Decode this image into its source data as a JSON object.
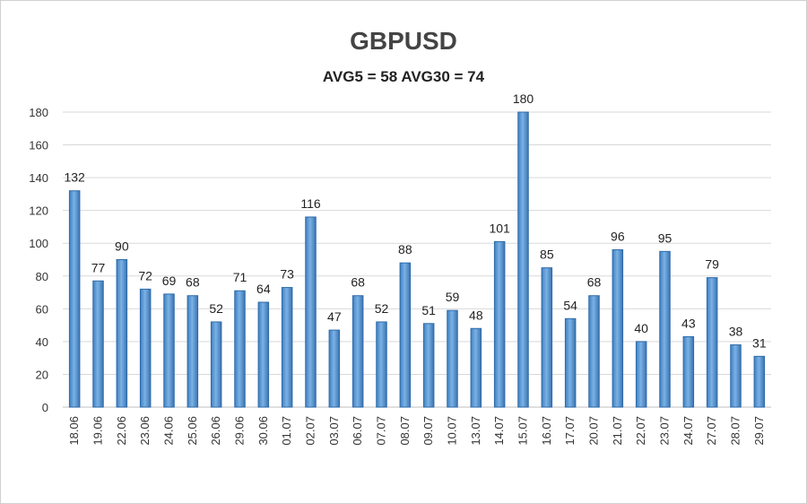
{
  "chart_data": {
    "type": "bar",
    "title": "GBPUSD",
    "subtitle": "AVG5 = 58 AVG30 = 74",
    "xlabel": "",
    "ylabel": "",
    "ylim": [
      0,
      180
    ],
    "yticks": [
      0,
      20,
      40,
      60,
      80,
      100,
      120,
      140,
      160,
      180
    ],
    "grid": true,
    "legend": "none",
    "bar_color": "#5b9bd5",
    "bar_edge_color": "#2e6aa8",
    "categories": [
      "18.06",
      "19.06",
      "22.06",
      "23.06",
      "24.06",
      "25.06",
      "26.06",
      "29.06",
      "30.06",
      "01.07",
      "02.07",
      "03.07",
      "06.07",
      "07.07",
      "08.07",
      "09.07",
      "10.07",
      "13.07",
      "14.07",
      "15.07",
      "16.07",
      "17.07",
      "20.07",
      "21.07",
      "22.07",
      "23.07",
      "24.07",
      "27.07",
      "28.07",
      "29.07"
    ],
    "values": [
      132,
      77,
      90,
      72,
      69,
      68,
      52,
      71,
      64,
      73,
      116,
      47,
      68,
      52,
      88,
      51,
      59,
      48,
      101,
      180,
      85,
      54,
      68,
      96,
      40,
      95,
      43,
      79,
      38,
      31
    ]
  }
}
